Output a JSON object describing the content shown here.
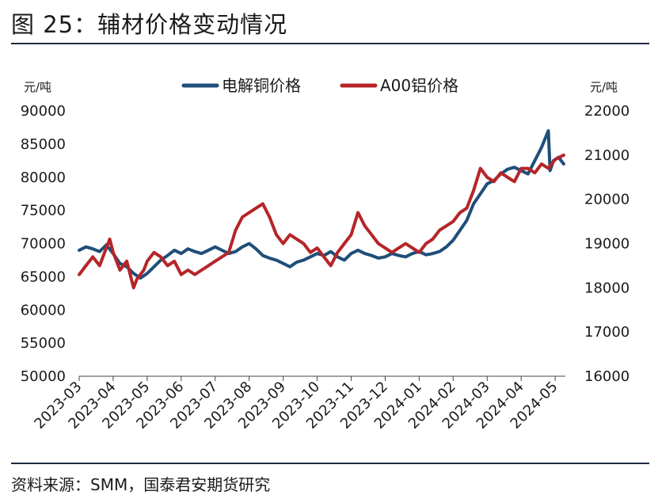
{
  "page": {
    "title": "图 25：辅材价格变动情况",
    "source": "资料来源：SMM，国泰君安期货研究"
  },
  "chart_data": {
    "type": "line",
    "title": "",
    "left_axis": {
      "unit": "元/吨",
      "ylim": [
        50000,
        90000
      ],
      "ticks": [
        50000,
        55000,
        60000,
        65000,
        70000,
        75000,
        80000,
        85000,
        90000
      ]
    },
    "right_axis": {
      "unit": "元/吨",
      "ylim": [
        16000,
        22000
      ],
      "ticks": [
        16000,
        17000,
        18000,
        19000,
        20000,
        21000,
        22000
      ]
    },
    "x_ticks": [
      "2023-03",
      "2023-04",
      "2023-05",
      "2023-06",
      "2023-07",
      "2023-08",
      "2023-09",
      "2023-10",
      "2023-11",
      "2023-12",
      "2024-01",
      "2024-02",
      "2024-03",
      "2024-04",
      "2024-05"
    ],
    "grid": false,
    "legend": "top-center",
    "series": [
      {
        "name": "电解铜价格",
        "axis": "left",
        "color": "#1f4e79",
        "x": [
          0,
          0.2,
          0.4,
          0.6,
          0.8,
          1,
          1.2,
          1.4,
          1.6,
          1.8,
          2,
          2.2,
          2.4,
          2.6,
          2.8,
          3,
          3.2,
          3.4,
          3.6,
          3.8,
          4,
          4.2,
          4.4,
          4.6,
          4.8,
          5,
          5.2,
          5.4,
          5.6,
          5.8,
          6,
          6.2,
          6.4,
          6.6,
          6.8,
          7,
          7.2,
          7.4,
          7.6,
          7.8,
          8,
          8.2,
          8.4,
          8.6,
          8.8,
          9,
          9.2,
          9.4,
          9.6,
          9.8,
          10,
          10.2,
          10.4,
          10.6,
          10.8,
          11,
          11.2,
          11.4,
          11.6,
          11.8,
          12,
          12.2,
          12.4,
          12.6,
          12.8,
          13,
          13.2,
          13.4,
          13.6,
          13.8,
          13.85,
          13.95,
          14.1,
          14.25
        ],
        "values": [
          69000,
          69500,
          69200,
          68800,
          69800,
          68500,
          67000,
          66500,
          65500,
          64800,
          65500,
          66500,
          67500,
          68200,
          69000,
          68500,
          69200,
          68800,
          68500,
          69000,
          69500,
          69000,
          68500,
          68800,
          69500,
          70000,
          69200,
          68200,
          67800,
          67500,
          67000,
          66500,
          67200,
          67500,
          68000,
          68500,
          68200,
          68800,
          68000,
          67500,
          68500,
          69000,
          68500,
          68200,
          67800,
          68000,
          68500,
          68200,
          68000,
          68500,
          68800,
          68300,
          68500,
          68800,
          69500,
          70500,
          72000,
          73500,
          76000,
          77500,
          79000,
          79500,
          80500,
          81200,
          81500,
          81000,
          80500,
          82500,
          84500,
          87000,
          81000,
          82500,
          83000,
          82000
        ]
      },
      {
        "name": "A00铝价格",
        "axis": "right",
        "color": "#b52528",
        "x": [
          0,
          0.2,
          0.4,
          0.6,
          0.8,
          0.9,
          1,
          1.2,
          1.4,
          1.6,
          1.7,
          1.9,
          2,
          2.2,
          2.4,
          2.6,
          2.8,
          3,
          3.2,
          3.4,
          3.6,
          3.8,
          4,
          4.2,
          4.4,
          4.6,
          4.8,
          5,
          5.2,
          5.4,
          5.6,
          5.8,
          6,
          6.2,
          6.4,
          6.6,
          6.8,
          7,
          7.2,
          7.4,
          7.6,
          7.8,
          8,
          8.2,
          8.4,
          8.6,
          8.8,
          9,
          9.2,
          9.4,
          9.6,
          9.8,
          10,
          10.2,
          10.4,
          10.6,
          10.8,
          11,
          11.2,
          11.4,
          11.6,
          11.8,
          12,
          12.2,
          12.4,
          12.6,
          12.8,
          13,
          13.2,
          13.4,
          13.6,
          13.8,
          14,
          14.25
        ],
        "values": [
          18300,
          18500,
          18700,
          18500,
          18900,
          19100,
          18800,
          18400,
          18600,
          18000,
          18200,
          18400,
          18600,
          18800,
          18700,
          18500,
          18600,
          18300,
          18400,
          18300,
          18400,
          18500,
          18600,
          18700,
          18800,
          19300,
          19600,
          19700,
          19800,
          19900,
          19600,
          19200,
          19000,
          19200,
          19100,
          19000,
          18800,
          18900,
          18700,
          18500,
          18800,
          19000,
          19200,
          19700,
          19400,
          19200,
          19000,
          18900,
          18800,
          18900,
          19000,
          18900,
          18800,
          19000,
          19100,
          19300,
          19400,
          19500,
          19700,
          19800,
          20200,
          20700,
          20500,
          20400,
          20600,
          20500,
          20400,
          20700,
          20700,
          20600,
          20800,
          20700,
          20900,
          21000
        ]
      }
    ]
  }
}
